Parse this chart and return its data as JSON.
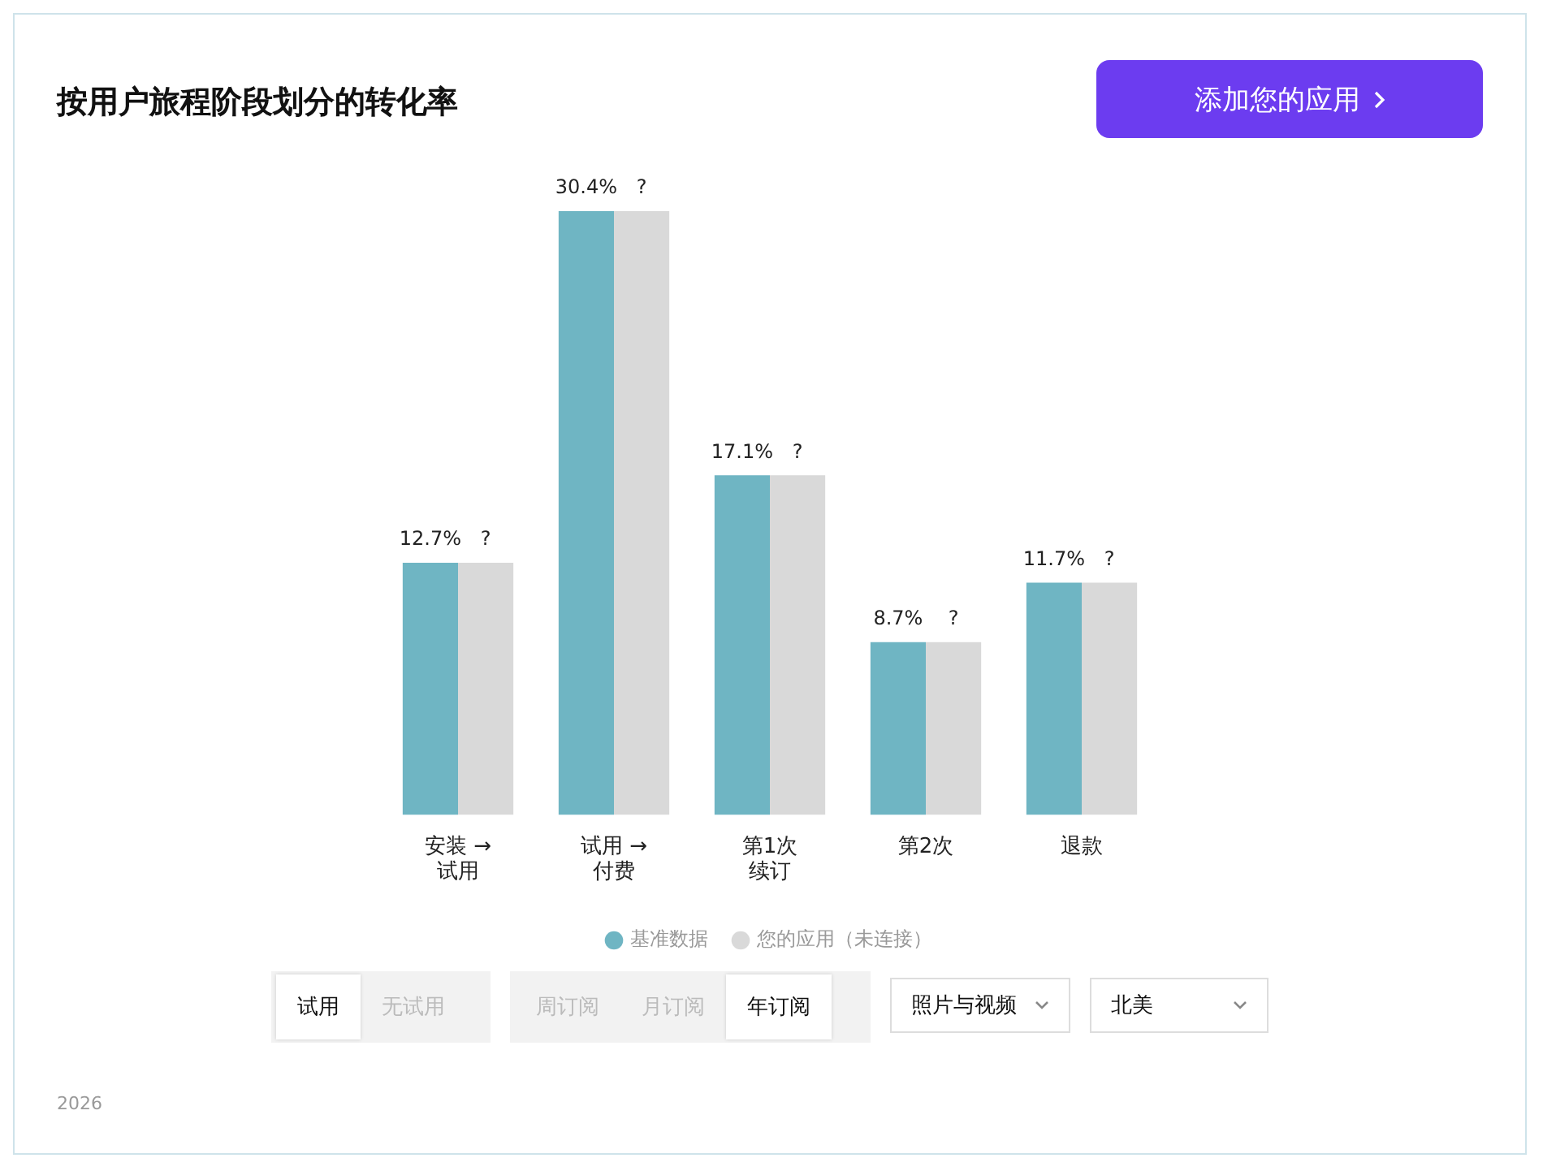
{
  "chart_data": {
    "type": "bar",
    "title": "按用户旅程阶段划分的转化率",
    "categories": [
      "安装 → 试用",
      "试用 → 付费",
      "第1次续订",
      "第2次",
      "退款"
    ],
    "series": [
      {
        "name": "基准数据",
        "color": "#6fb5c3",
        "values": [
          12.7,
          30.4,
          17.1,
          8.7,
          11.7
        ],
        "value_labels": [
          "12.7%",
          "30.4%",
          "17.1%",
          "8.7%",
          "11.7%"
        ]
      },
      {
        "name": "您的应用（未连接）",
        "color": "#d9d9d9",
        "values": [
          12.7,
          30.4,
          17.1,
          8.7,
          11.7
        ],
        "value_labels": [
          "?",
          "?",
          "?",
          "?",
          "?"
        ]
      }
    ],
    "legend": "bottom",
    "grid": false,
    "tick_labels": "x",
    "annotations": [
      "添加您的应用",
      "试用",
      "无试用",
      "周订阅",
      "月订阅",
      "年订阅",
      "照片与视频",
      "北美",
      "2026"
    ]
  }
}
